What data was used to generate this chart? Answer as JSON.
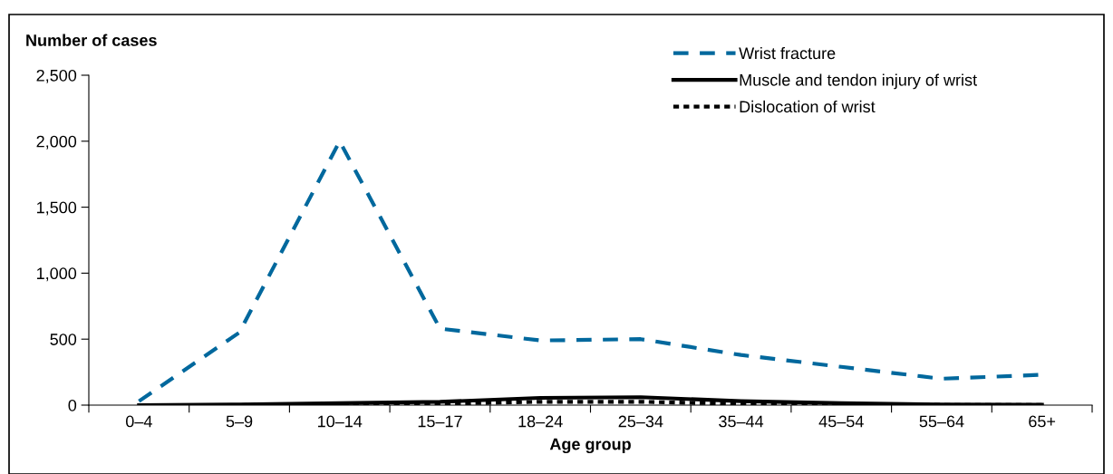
{
  "chart_data": {
    "type": "line",
    "ylabel": "Number of cases",
    "xlabel": "Age group",
    "categories": [
      "0–4",
      "5–9",
      "10–14",
      "15–17",
      "18–24",
      "25–34",
      "35–44",
      "45–54",
      "55–64",
      "65+"
    ],
    "series": [
      {
        "name": "Wrist fracture",
        "color": "#00689d",
        "line_style": "dashed",
        "values": [
          30,
          550,
          2000,
          580,
          490,
          500,
          380,
          290,
          200,
          230
        ]
      },
      {
        "name": "Muscle and tendon injury of wrist",
        "color": "#000000",
        "line_style": "solid",
        "values": [
          0,
          5,
          15,
          25,
          55,
          60,
          30,
          15,
          5,
          3
        ]
      },
      {
        "name": "Dislocation of wrist",
        "color": "#000000",
        "line_style": "dotted",
        "values": [
          0,
          0,
          5,
          10,
          25,
          25,
          10,
          5,
          2,
          2
        ]
      }
    ],
    "ylim": [
      0,
      2500
    ],
    "yticks": [
      {
        "value": 0,
        "label": "0"
      },
      {
        "value": 500,
        "label": "500"
      },
      {
        "value": 1000,
        "label": "1,000"
      },
      {
        "value": 1500,
        "label": "1,500"
      },
      {
        "value": 2000,
        "label": "2,000"
      },
      {
        "value": 2500,
        "label": "2,500"
      }
    ],
    "grid": false,
    "legend": "top right"
  }
}
